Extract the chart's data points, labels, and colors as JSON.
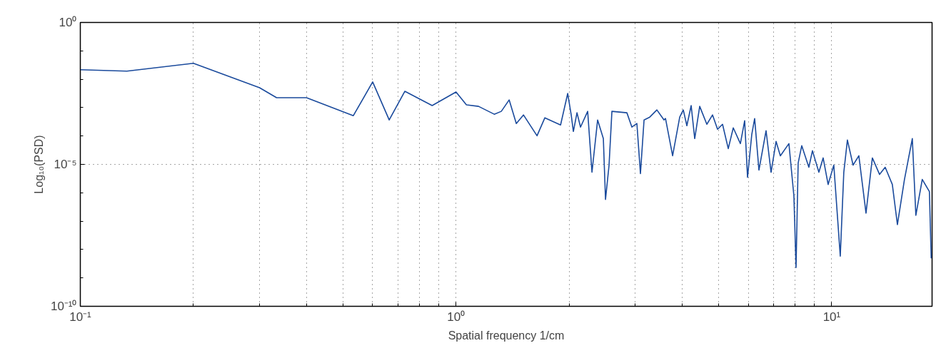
{
  "chart_data": {
    "type": "line",
    "xlabel": "Spatial frequency 1/cm",
    "ylabel": "Log₁₀(PSD)",
    "log": "xy",
    "grid": true,
    "xlim": [
      0.1,
      18.5
    ],
    "ylim": [
      1e-10,
      1
    ],
    "xticks": [
      {
        "value": 0.1,
        "label": "10⁻¹"
      },
      {
        "value": 0.2,
        "label": null
      },
      {
        "value": 0.3,
        "label": null
      },
      {
        "value": 0.4,
        "label": null
      },
      {
        "value": 0.5,
        "label": null
      },
      {
        "value": 0.6,
        "label": null
      },
      {
        "value": 0.7,
        "label": null
      },
      {
        "value": 0.8,
        "label": null
      },
      {
        "value": 0.9,
        "label": null
      },
      {
        "value": 1,
        "label": "10⁰"
      },
      {
        "value": 2,
        "label": null
      },
      {
        "value": 3,
        "label": null
      },
      {
        "value": 4,
        "label": null
      },
      {
        "value": 5,
        "label": null
      },
      {
        "value": 6,
        "label": null
      },
      {
        "value": 7,
        "label": null
      },
      {
        "value": 8,
        "label": null
      },
      {
        "value": 9,
        "label": null
      },
      {
        "value": 10,
        "label": "10¹"
      }
    ],
    "yticks": [
      {
        "value": 1e-10,
        "label": "10⁻¹⁰"
      },
      {
        "value": 1e-09,
        "label": null
      },
      {
        "value": 1e-08,
        "label": null
      },
      {
        "value": 1e-07,
        "label": null
      },
      {
        "value": 1e-06,
        "label": null
      },
      {
        "value": 1e-05,
        "label": "10⁻⁵"
      },
      {
        "value": 0.0001,
        "label": null
      },
      {
        "value": 0.001,
        "label": null
      },
      {
        "value": 0.01,
        "label": null
      },
      {
        "value": 0.1,
        "label": null
      },
      {
        "value": 1,
        "label": "10⁰"
      }
    ],
    "x": [
      0.1,
      0.133,
      0.2,
      0.3,
      0.333,
      0.4,
      0.533,
      0.6,
      0.664,
      0.731,
      0.864,
      1.0,
      1.066,
      1.148,
      1.264,
      1.32,
      1.385,
      1.447,
      1.512,
      1.643,
      1.724,
      1.898,
      1.983,
      2.026,
      2.053,
      2.099,
      2.145,
      2.241,
      2.301,
      2.382,
      2.467,
      2.5,
      2.555,
      2.6,
      2.85,
      2.939,
      3.03,
      3.097,
      3.166,
      3.279,
      3.425,
      3.579,
      3.611,
      3.772,
      3.94,
      4.027,
      4.116,
      4.226,
      4.319,
      4.453,
      4.652,
      4.818,
      4.968,
      5.122,
      5.305,
      5.47,
      5.714,
      5.866,
      5.97,
      6.128,
      6.236,
      6.402,
      6.688,
      6.896,
      7.111,
      7.3,
      7.693,
      7.932,
      8.037,
      8.142,
      8.322,
      8.694,
      8.887,
      9.244,
      9.489,
      9.783,
      10.13,
      10.54,
      10.77,
      11.01,
      11.4,
      11.81,
      12.34,
      12.83,
      13.41,
      13.88,
      14.5,
      14.96,
      15.62,
      16.39,
      16.75,
      17.42,
      18.2,
      18.4
    ],
    "series": [
      {
        "color": "#1a4a9c",
        "values": [
          0.0216,
          0.0192,
          0.0364,
          0.00504,
          0.00223,
          0.00223,
          0.000521,
          0.00802,
          0.000368,
          0.00377,
          0.00118,
          0.00356,
          0.00125,
          0.00111,
          0.000586,
          0.000739,
          0.00187,
          0.000275,
          0.000552,
          0.000102,
          0.000438,
          0.000245,
          0.00316,
          0.000552,
          0.000145,
          0.000658,
          0.000206,
          0.000739,
          5.28e-06,
          0.000368,
          8.11e-05,
          5.79e-07,
          9.44e-06,
          0.000739,
          0.000658,
          0.000206,
          0.000275,
          4.7e-06,
          0.000368,
          0.000464,
          0.00083,
          0.000368,
          0.000413,
          2.01e-05,
          0.000464,
          0.00083,
          0.000231,
          0.00118,
          8.11e-05,
          0.00111,
          0.000259,
          0.000552,
          0.000173,
          0.000259,
          3.6e-05,
          0.000194,
          5.4e-05,
          0.000347,
          3.51e-06,
          0.000115,
          0.000413,
          6.28e-06,
          0.000154,
          5.28e-06,
          6.43e-05,
          2.01e-05,
          5.4e-05,
          7.74e-07,
          2.31e-09,
          1.12e-05,
          4.54e-05,
          7.93e-06,
          3.02e-05,
          5.28e-06,
          1.69e-05,
          1.96e-06,
          9.44e-06,
          5.86e-09,
          5.28e-06,
          7.22e-05,
          9.44e-06,
          2.01e-05,
          1.92e-07,
          1.69e-05,
          4.43e-06,
          7.93e-06,
          1.96e-06,
          7.57e-08,
          2.95e-06,
          8.11e-05,
          1.61e-07,
          2.95e-06,
          1.1e-06,
          4.92e-09
        ]
      }
    ]
  }
}
